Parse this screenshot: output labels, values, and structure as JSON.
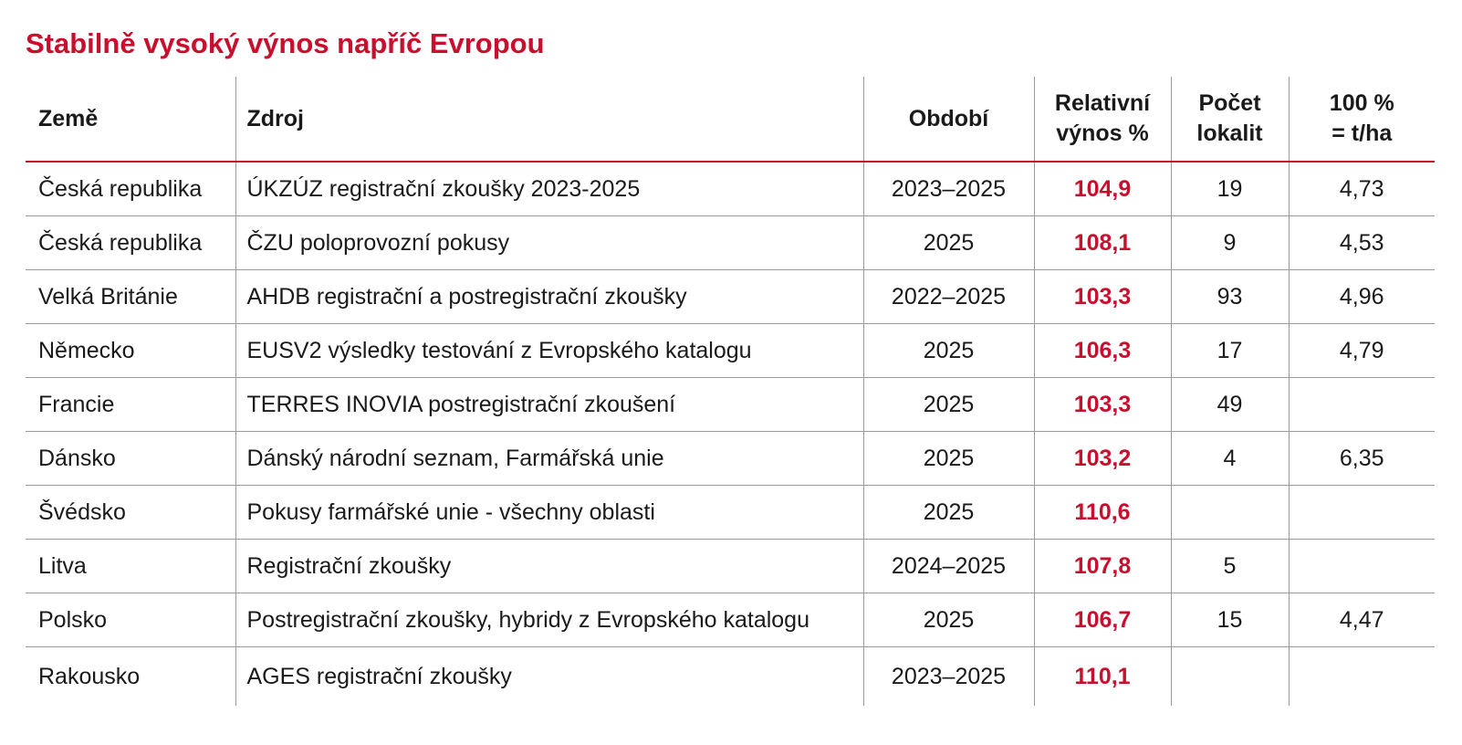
{
  "title": "Stabilně vysoký výnos napříč Evropou",
  "headers": {
    "country": "Země",
    "source": "Zdroj",
    "period": "Období",
    "relative_line1": "Relativní",
    "relative_line2": "výnos %",
    "sites_line1": "Počet",
    "sites_line2": "lokalit",
    "base_line1": "100 %",
    "base_line2": "= t/ha"
  },
  "rows": [
    {
      "country": "Česká republika",
      "source": "ÚKZÚZ registrační zkoušky 2023-2025",
      "period": "2023–2025",
      "relative": "104,9",
      "sites": "19",
      "base": "4,73"
    },
    {
      "country": "Česká republika",
      "source": "ČZU poloprovozní pokusy",
      "period": "2025",
      "relative": "108,1",
      "sites": "9",
      "base": "4,53"
    },
    {
      "country": "Velká Británie",
      "source": "AHDB registrační a postregistrační zkoušky",
      "period": "2022–2025",
      "relative": "103,3",
      "sites": "93",
      "base": "4,96"
    },
    {
      "country": "Německo",
      "source": "EUSV2 výsledky testování z Evropského katalogu",
      "period": "2025",
      "relative": "106,3",
      "sites": "17",
      "base": "4,79"
    },
    {
      "country": "Francie",
      "source": "TERRES INOVIA postregistrační zkoušení",
      "period": "2025",
      "relative": "103,3",
      "sites": "49",
      "base": ""
    },
    {
      "country": "Dánsko",
      "source": "Dánský národní seznam, Farmářská unie",
      "period": "2025",
      "relative": "103,2",
      "sites": "4",
      "base": "6,35"
    },
    {
      "country": "Švédsko",
      "source": "Pokusy farmářské unie - všechny oblasti",
      "period": "2025",
      "relative": "110,6",
      "sites": "",
      "base": ""
    },
    {
      "country": "Litva",
      "source": "Registrační zkoušky",
      "period": "2024–2025",
      "relative": "107,8",
      "sites": "5",
      "base": ""
    },
    {
      "country": "Polsko",
      "source": "Postregistrační zkoušky, hybridy z Evropského katalogu",
      "period": "2025",
      "relative": "106,7",
      "sites": "15",
      "base": "4,47"
    },
    {
      "country": "Rakousko",
      "source": "AGES registrační zkoušky",
      "period": "2023–2025",
      "relative": "110,1",
      "sites": "",
      "base": ""
    }
  ],
  "colors": {
    "accent": "#c8102e",
    "grid": "#9a9a9a",
    "text": "#1a1a1a"
  }
}
